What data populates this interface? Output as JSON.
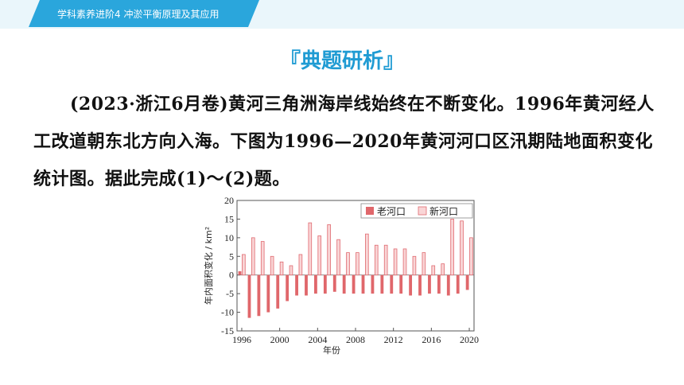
{
  "header": {
    "breadcrumb": "学科素养进阶4    冲淤平衡原理及其应用"
  },
  "section_title": "『典题研析』",
  "question": {
    "source": "(2023·浙江6月卷)",
    "text": "黄河三角洲海岸线始终在不断变化。1996年黄河经人工改道朝东北方向入海。下图为1996—2020年黄河河口区汛期陆地面积变化统计图。据此完成(1)～(2)题。"
  },
  "colors": {
    "accent": "#2aa6dc",
    "old_river": "#e0676b",
    "new_river": "#f9d5d6",
    "new_river_border": "#e06a70"
  },
  "chart_data": {
    "type": "bar",
    "xlabel": "年份",
    "ylabel": "年内面积变化 / km²",
    "ylim": [
      -15,
      20
    ],
    "yticks": [
      -15,
      -10,
      -5,
      0,
      5,
      10,
      15,
      20
    ],
    "xticks": [
      "1996",
      "2000",
      "2004",
      "2008",
      "2012",
      "2016",
      "2020"
    ],
    "categories": [
      "1996",
      "1997",
      "1998",
      "1999",
      "2000",
      "2001",
      "2002",
      "2003",
      "2004",
      "2005",
      "2006",
      "2007",
      "2008",
      "2009",
      "2010",
      "2011",
      "2012",
      "2013",
      "2014",
      "2015",
      "2016",
      "2017",
      "2018",
      "2019",
      "2020"
    ],
    "legend_position": "top-right",
    "series": [
      {
        "name": "老河口",
        "values": [
          1,
          -11.5,
          -11,
          -10,
          -9,
          -7,
          -5.5,
          -5.5,
          -5,
          -5,
          -4.5,
          -5,
          -5,
          -5,
          -5,
          -5,
          -5,
          -5,
          -5.5,
          -5.5,
          -5,
          -5,
          -5.5,
          -5,
          -4
        ]
      },
      {
        "name": "新河口",
        "values": [
          5.5,
          10,
          9,
          5,
          3.5,
          2.5,
          5.5,
          14,
          10.5,
          13.5,
          9.5,
          6,
          6,
          11,
          8,
          8,
          7,
          7,
          5,
          6,
          2.5,
          3,
          15,
          14.5,
          10
        ]
      }
    ]
  }
}
